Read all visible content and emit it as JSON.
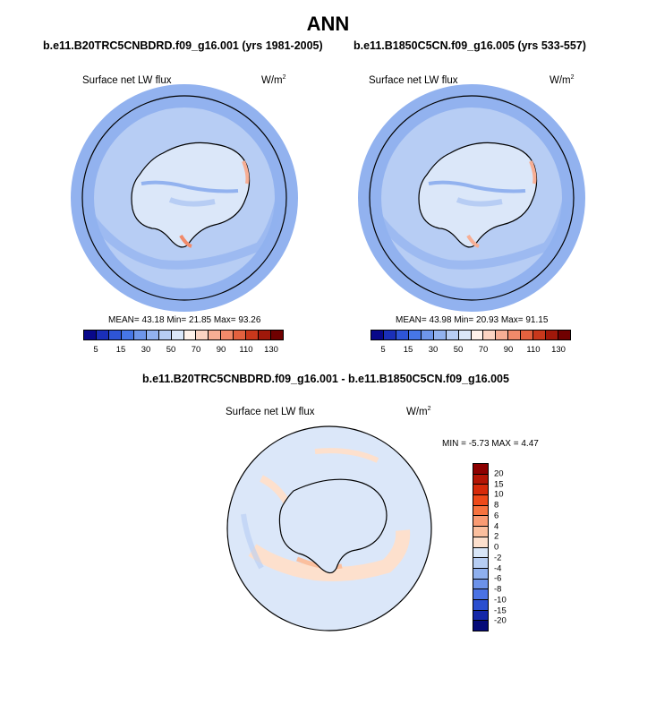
{
  "main_title": "ANN",
  "panels": [
    {
      "case_title": "b.e11.B20TRC5CNBDRD.f09_g16.001 (yrs 1981-2005)",
      "variable": "Surface net LW flux",
      "units_base": "W/m",
      "units_exp": "2",
      "stats": "MEAN=  43.18  Min=  21.85  Max=  93.26"
    },
    {
      "case_title": "b.e11.B1850C5CN.f09_g16.005 (yrs 533-557)",
      "variable": "Surface net LW flux",
      "units_base": "W/m",
      "units_exp": "2",
      "stats": "MEAN=  43.98  Min=  20.93  Max=  91.15"
    },
    {
      "case_title": "b.e11.B20TRC5CNBDRD.f09_g16.001 - b.e11.B1850C5CN.f09_g16.005",
      "variable": "Surface net LW flux",
      "units_base": "W/m",
      "units_exp": "2",
      "stats": "MIN =  -5.73 MAX =   4.47"
    }
  ],
  "chart_data": [
    {
      "type": "heatmap",
      "title": "Surface net LW flux",
      "projection": "south polar stereographic",
      "mean": 43.18,
      "min": 21.85,
      "max": 93.26,
      "colorbar_levels": [
        5,
        10,
        15,
        20,
        30,
        40,
        50,
        60,
        70,
        80,
        90,
        100,
        110,
        120,
        130
      ],
      "colorbar_tick_labels": [
        "5",
        "15",
        "30",
        "50",
        "70",
        "90",
        "110",
        "130"
      ],
      "colorbar_colors": [
        "#08088a",
        "#1a2fb8",
        "#2e55d6",
        "#4676e6",
        "#6e96ea",
        "#92b2ef",
        "#b7cdf4",
        "#dbe7f9",
        "#fff2ea",
        "#fcd4c2",
        "#f7ae94",
        "#f18a6a",
        "#e3613f",
        "#c8381c",
        "#a0180a",
        "#700000"
      ]
    },
    {
      "type": "heatmap",
      "title": "Surface net LW flux",
      "projection": "south polar stereographic",
      "mean": 43.98,
      "min": 20.93,
      "max": 91.15,
      "colorbar_levels": [
        5,
        10,
        15,
        20,
        30,
        40,
        50,
        60,
        70,
        80,
        90,
        100,
        110,
        120,
        130
      ],
      "colorbar_tick_labels": [
        "5",
        "15",
        "30",
        "50",
        "70",
        "90",
        "110",
        "130"
      ],
      "colorbar_colors": [
        "#08088a",
        "#1a2fb8",
        "#2e55d6",
        "#4676e6",
        "#6e96ea",
        "#92b2ef",
        "#b7cdf4",
        "#dbe7f9",
        "#fff2ea",
        "#fcd4c2",
        "#f7ae94",
        "#f18a6a",
        "#e3613f",
        "#c8381c",
        "#a0180a",
        "#700000"
      ]
    },
    {
      "type": "heatmap",
      "title": "Surface net LW flux",
      "projection": "south polar stereographic",
      "min": -5.73,
      "max": 4.47,
      "colorbar_levels": [
        20,
        15,
        10,
        8,
        6,
        4,
        2,
        0,
        -2,
        -4,
        -6,
        -8,
        -10,
        -15,
        -20
      ],
      "colorbar_tick_labels": [
        "20",
        "15",
        "10",
        "8",
        "6",
        "4",
        "2",
        "0",
        "-2",
        "-4",
        "-6",
        "-8",
        "-10",
        "-15",
        "-20"
      ],
      "colorbar_colors": [
        "#8c0000",
        "#b31505",
        "#d62a0a",
        "#ee4a1a",
        "#f7733f",
        "#f99b73",
        "#fbbf9e",
        "#fde0cd",
        "#d8e6f8",
        "#b6cdf3",
        "#8fb0ef",
        "#6c92ea",
        "#4a72e4",
        "#2b4fcf",
        "#1528a8",
        "#050a78"
      ]
    }
  ]
}
